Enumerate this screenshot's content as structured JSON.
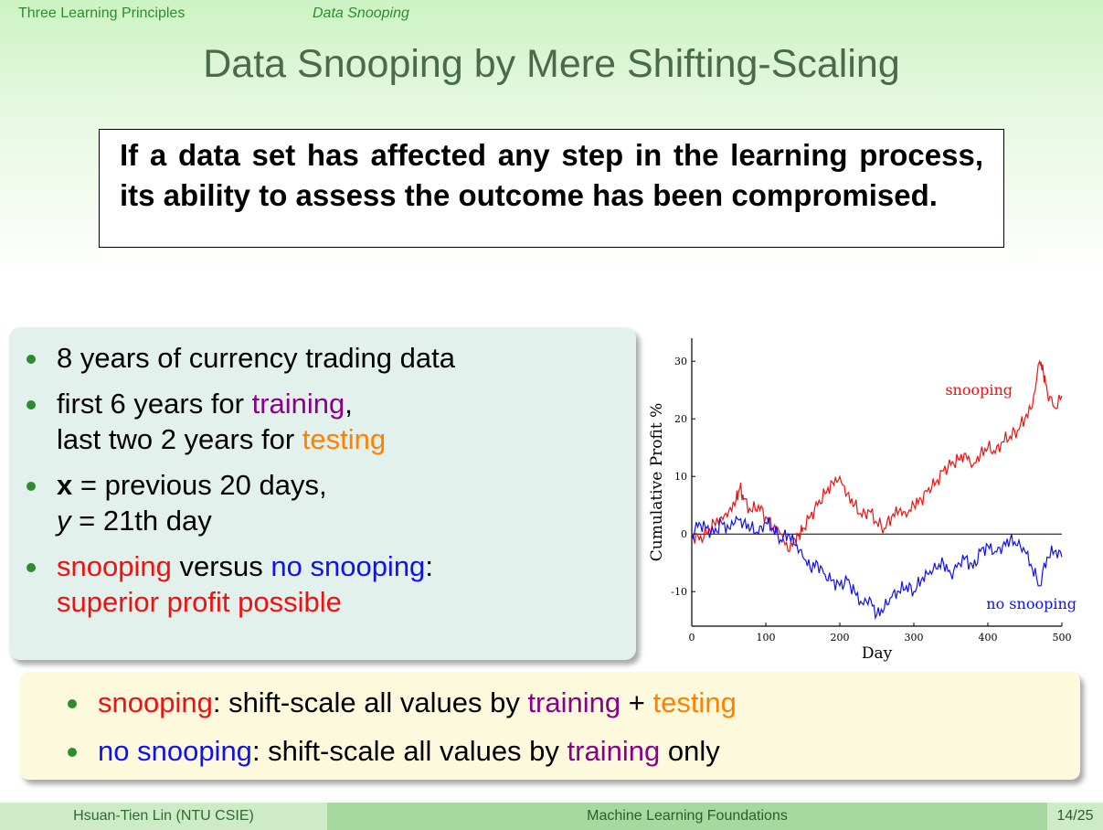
{
  "header": {
    "section": "Three Learning Principles",
    "subsection": "Data Snooping"
  },
  "slide": {
    "title": "Data Snooping by Mere Shifting-Scaling",
    "quote": "If a data set has affected any step in the learning process, its ability to assess the outcome has been compromised."
  },
  "bullets": {
    "b1": "8 years of currency trading data",
    "b2_prefix": "first 6 years for ",
    "b2_training": "training",
    "b2_comma": ",",
    "b2_line2": "last two 2 years for ",
    "b2_testing": "testing",
    "b3_x": "x",
    "b3_rest": " = previous 20 days,",
    "b3_y": "y",
    "b3_line2": " = 21th day",
    "b4_snooping": "snooping",
    "b4_versus": " versus ",
    "b4_nosnooping": "no snooping",
    "b4_colon": ":",
    "b4_line2": "superior profit possible"
  },
  "bottom": {
    "l1_snooping": "snooping",
    "l1_mid": ": shift-scale all values by ",
    "l1_training": "training",
    "l1_plus": " + ",
    "l1_testing": "testing",
    "l2_nosnooping": "no snooping",
    "l2_mid": ": shift-scale all values by ",
    "l2_training": "training",
    "l2_only": " only"
  },
  "footer": {
    "author": "Hsuan-Tien Lin  (NTU CSIE)",
    "course": "Machine Learning Foundations",
    "page": "14/25"
  },
  "colors": {
    "snooping": "#ee1111",
    "no_snooping": "#1111ee",
    "training": "#8b008b",
    "testing": "#ff8000",
    "accent": "#2e8b2e"
  },
  "chart_data": {
    "type": "line",
    "xlabel": "Day",
    "ylabel": "Cumulative Profit %",
    "xlim": [
      0,
      500
    ],
    "ylim": [
      -16,
      34
    ],
    "xticks": [
      0,
      100,
      200,
      300,
      400,
      500
    ],
    "yticks": [
      -10,
      0,
      10,
      20,
      30
    ],
    "grid": false,
    "series": [
      {
        "name": "snooping",
        "color": "#ee1111",
        "x": [
          0,
          10,
          20,
          30,
          40,
          50,
          60,
          65,
          70,
          80,
          90,
          100,
          110,
          120,
          130,
          140,
          145,
          150,
          160,
          170,
          180,
          190,
          200,
          210,
          220,
          230,
          240,
          250,
          260,
          270,
          280,
          290,
          300,
          310,
          320,
          330,
          340,
          350,
          360,
          370,
          380,
          390,
          400,
          410,
          420,
          430,
          440,
          450,
          460,
          470,
          475,
          480,
          490,
          500
        ],
        "y": [
          0,
          -1,
          0,
          2,
          3,
          4,
          6,
          8,
          6,
          4,
          5,
          3,
          1,
          0,
          -3,
          -1,
          0,
          1,
          3,
          5,
          7,
          9,
          10,
          7,
          5,
          3,
          4,
          2,
          1,
          3,
          4,
          3,
          5,
          6,
          8,
          9,
          11,
          12,
          13,
          14,
          12,
          14,
          15,
          14,
          16,
          17,
          18,
          20,
          22,
          30,
          28,
          25,
          22,
          24
        ]
      },
      {
        "name": "no snooping",
        "color": "#1111ee",
        "x": [
          0,
          10,
          20,
          30,
          40,
          50,
          60,
          70,
          80,
          90,
          100,
          110,
          120,
          130,
          140,
          150,
          160,
          170,
          180,
          190,
          200,
          210,
          220,
          230,
          240,
          250,
          260,
          270,
          280,
          290,
          300,
          310,
          320,
          330,
          340,
          350,
          360,
          370,
          380,
          390,
          400,
          410,
          420,
          430,
          440,
          450,
          460,
          470,
          480,
          490,
          500
        ],
        "y": [
          0,
          2,
          1,
          0,
          2,
          1,
          3,
          2,
          1,
          0,
          2,
          1,
          -1,
          0,
          -2,
          -4,
          -6,
          -5,
          -7,
          -8,
          -9,
          -8,
          -10,
          -12,
          -11,
          -14,
          -13,
          -11,
          -10,
          -9,
          -10,
          -8,
          -7,
          -6,
          -5,
          -7,
          -5,
          -4,
          -6,
          -3,
          -2,
          -3,
          -2,
          -1,
          -2,
          -3,
          -6,
          -9,
          -4,
          -3,
          -4
        ]
      }
    ],
    "annotations": [
      {
        "text": "snooping",
        "color": "#ee1111"
      },
      {
        "text": "no snooping",
        "color": "#1111ee"
      }
    ]
  }
}
